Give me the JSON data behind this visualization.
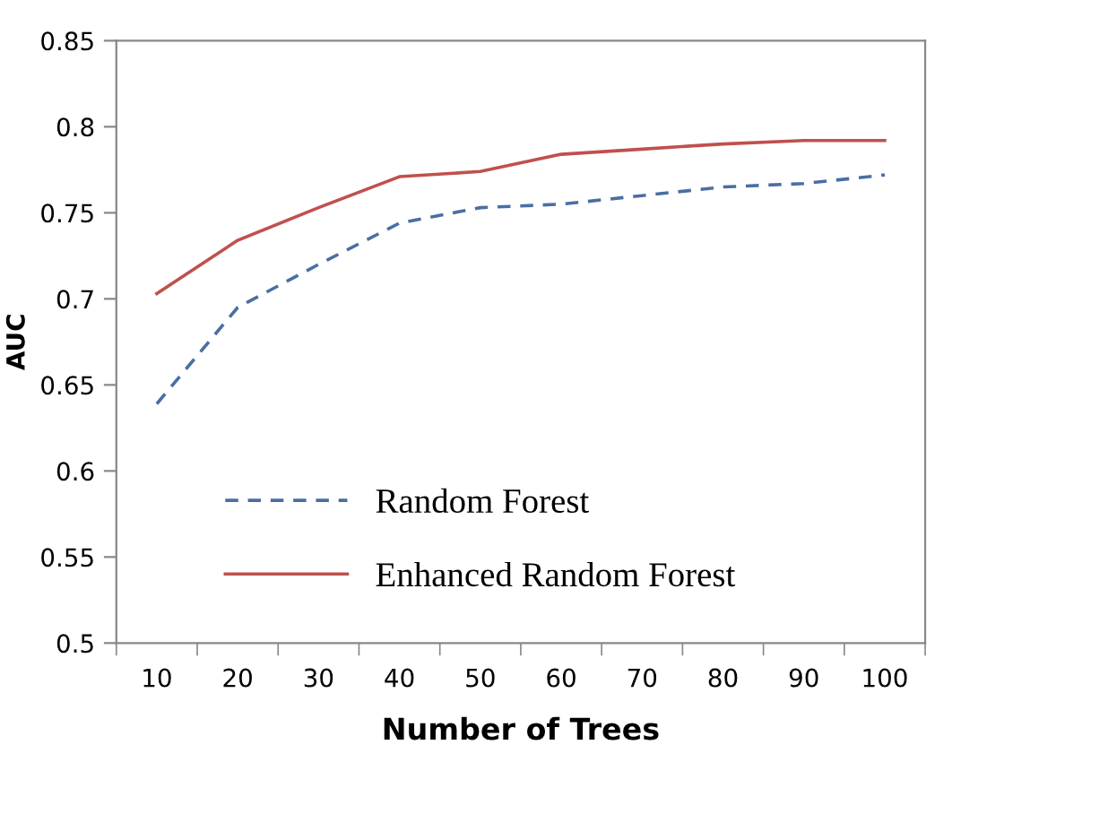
{
  "chart_data": {
    "type": "line",
    "xlabel": "Number of Trees",
    "ylabel": "AUC",
    "categories": [
      "10",
      "20",
      "30",
      "40",
      "50",
      "60",
      "70",
      "80",
      "90",
      "100"
    ],
    "series": [
      {
        "name": "Random Forest",
        "color": "#4a6ea4",
        "line_style": "dashed",
        "values": [
          0.639,
          0.695,
          0.72,
          0.744,
          0.753,
          0.755,
          0.76,
          0.765,
          0.767,
          0.772
        ]
      },
      {
        "name": "Enhanced Random Forest",
        "color": "#c0504d",
        "line_style": "solid",
        "values": [
          0.703,
          0.734,
          0.753,
          0.771,
          0.774,
          0.784,
          0.787,
          0.79,
          0.792,
          0.792
        ]
      }
    ],
    "ylim": [
      0.5,
      0.85
    ],
    "yticks": [
      0.5,
      0.55,
      0.6,
      0.65,
      0.7,
      0.75,
      0.8,
      0.85
    ],
    "grid": false,
    "legend": "bottom",
    "marker": "none"
  }
}
